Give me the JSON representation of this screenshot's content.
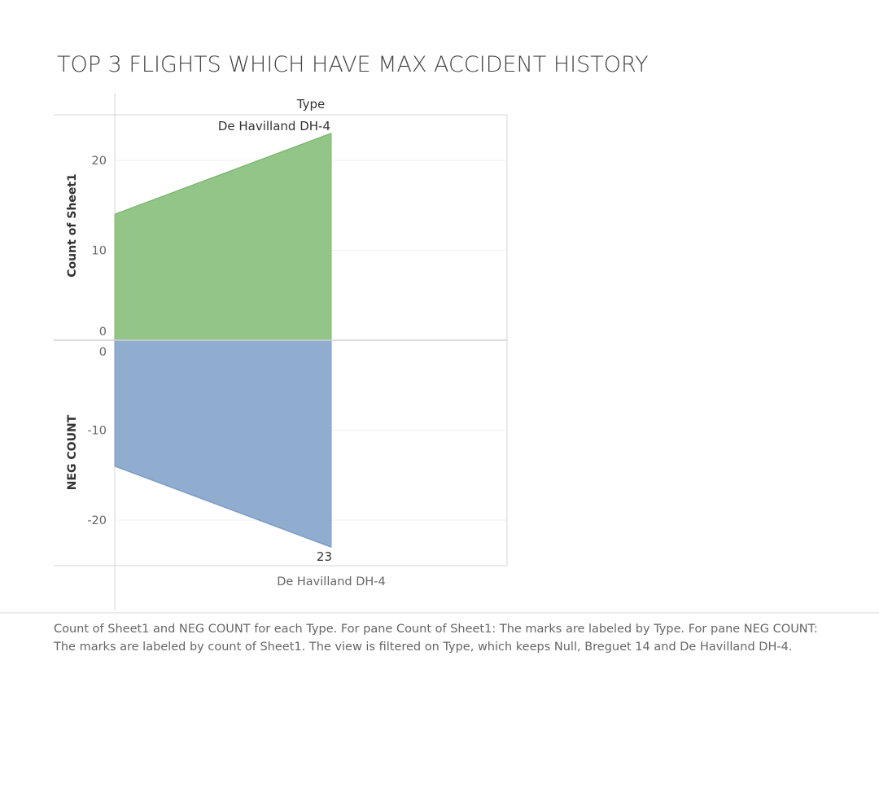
{
  "title": "TOP 3 FLIGHTS WHICH HAVE MAX ACCIDENT HISTORY",
  "caption": "Count of Sheet1 and NEG COUNT for each Type.  For pane Count of Sheet1: The marks are labeled by Type.  For pane NEG COUNT: The marks are labeled by count of Sheet1. The view is filtered on Type, which keeps Null, Breguet 14 and De Havilland DH-4.",
  "chart_data": {
    "type": "area",
    "column_header": "Type",
    "categories": [
      "Null",
      "Breguet 14",
      "De Havilland DH-4"
    ],
    "x_axis_visible_label": "De Havilland DH-4",
    "colors": {
      "top": "#7fbb72",
      "bottom": "#7c9ec7"
    },
    "panes": [
      {
        "name": "Count of Sheet1",
        "ylabel": "Count of Sheet1",
        "ylim": [
          0,
          25
        ],
        "ticks": [
          0,
          10,
          20
        ],
        "start_value": 14,
        "end_value": 23,
        "mark_label": "De Havilland DH-4"
      },
      {
        "name": "NEG COUNT",
        "ylabel": "NEG COUNT",
        "ylim": [
          -25,
          0
        ],
        "ticks": [
          0,
          -10,
          -20
        ],
        "start_value": -14,
        "end_value": -23,
        "mark_label": "23"
      }
    ]
  }
}
